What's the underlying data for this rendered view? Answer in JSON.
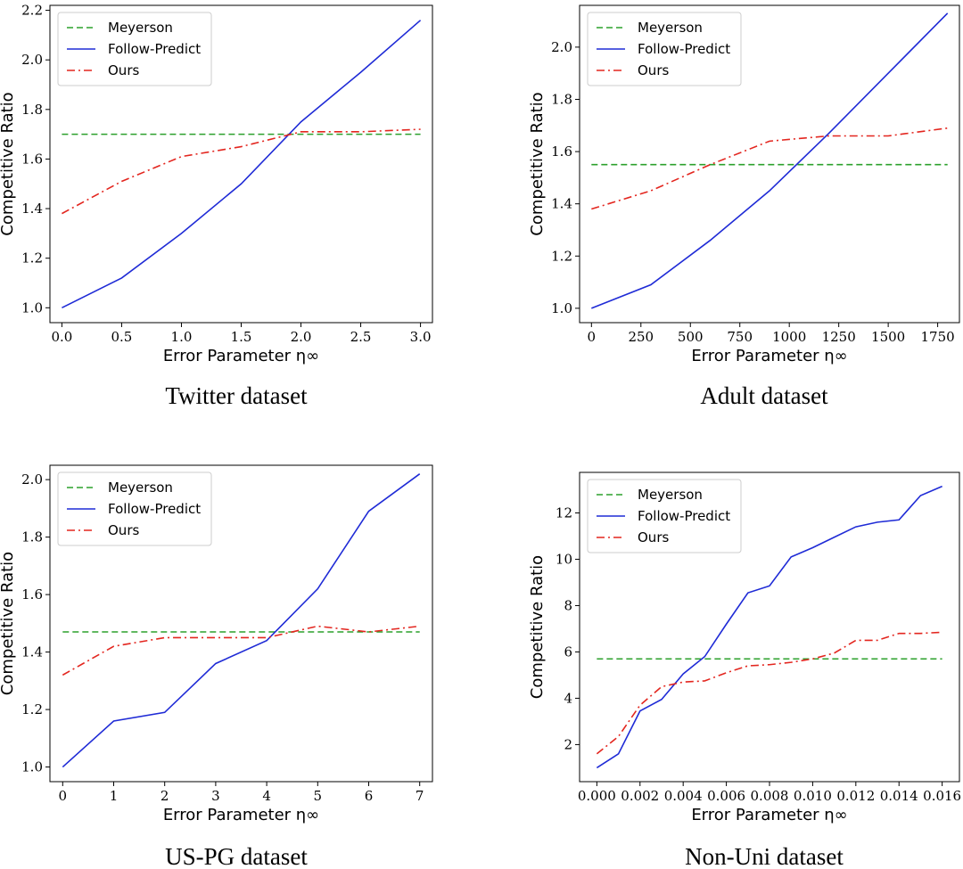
{
  "legend": [
    "Meyerson",
    "Follow-Predict",
    "Ours"
  ],
  "series_colors": {
    "Meyerson": "#2ca02c",
    "Follow-Predict": "#1f2bd6",
    "Ours": "#e3261f"
  },
  "chart_data": [
    {
      "type": "line",
      "title": "Twitter dataset",
      "xlabel": "Error Parameter η∞",
      "ylabel": "Competitive Ratio",
      "xlim": [
        -0.1,
        3.1
      ],
      "ylim": [
        0.94,
        2.22
      ],
      "xticks": [
        0,
        0.5,
        1,
        1.5,
        2,
        2.5,
        3
      ],
      "xtick_labels": [
        "0.0",
        "0.5",
        "1.0",
        "1.5",
        "2.0",
        "2.5",
        "3.0"
      ],
      "yticks": [
        1.0,
        1.2,
        1.4,
        1.6,
        1.8,
        2.0,
        2.2
      ],
      "ytick_labels": [
        "1.0",
        "1.2",
        "1.4",
        "1.6",
        "1.8",
        "2.0",
        "2.2"
      ],
      "legend_position": "top-left",
      "series": [
        {
          "name": "Meyerson",
          "style": "dashed",
          "x": [
            0,
            3
          ],
          "y": [
            1.7,
            1.7
          ]
        },
        {
          "name": "Follow-Predict",
          "style": "solid",
          "x": [
            0,
            0.5,
            1,
            1.5,
            2,
            2.5,
            3
          ],
          "y": [
            1.0,
            1.12,
            1.3,
            1.5,
            1.75,
            1.95,
            2.16
          ]
        },
        {
          "name": "Ours",
          "style": "dashdot",
          "x": [
            0,
            0.5,
            1,
            1.5,
            2,
            2.5,
            3
          ],
          "y": [
            1.38,
            1.51,
            1.61,
            1.65,
            1.71,
            1.71,
            1.72
          ]
        }
      ]
    },
    {
      "type": "line",
      "title": "Adult dataset",
      "xlabel": "Error Parameter η∞",
      "ylabel": "Competitive Ratio",
      "xlim": [
        -60,
        1860
      ],
      "ylim": [
        0.945,
        2.16
      ],
      "xticks": [
        0,
        250,
        500,
        750,
        1000,
        1250,
        1500,
        1750
      ],
      "xtick_labels": [
        "0",
        "250",
        "500",
        "750",
        "1000",
        "1250",
        "1500",
        "1750"
      ],
      "yticks": [
        1.0,
        1.2,
        1.4,
        1.6,
        1.8,
        2.0
      ],
      "ytick_labels": [
        "1.0",
        "1.2",
        "1.4",
        "1.6",
        "1.8",
        "2.0"
      ],
      "legend_position": "top-left",
      "series": [
        {
          "name": "Meyerson",
          "style": "dashed",
          "x": [
            0,
            1800
          ],
          "y": [
            1.55,
            1.55
          ]
        },
        {
          "name": "Follow-Predict",
          "style": "solid",
          "x": [
            0,
            300,
            600,
            900,
            1200,
            1500,
            1800
          ],
          "y": [
            1.0,
            1.09,
            1.26,
            1.45,
            1.67,
            1.9,
            2.13
          ]
        },
        {
          "name": "Ours",
          "style": "dashdot",
          "x": [
            0,
            300,
            600,
            900,
            1200,
            1500,
            1800
          ],
          "y": [
            1.38,
            1.45,
            1.55,
            1.64,
            1.66,
            1.66,
            1.69
          ]
        }
      ]
    },
    {
      "type": "line",
      "title": "US-PG dataset",
      "xlabel": "Error Parameter η∞",
      "ylabel": "Competitive Ratio",
      "xlim": [
        -0.25,
        7.25
      ],
      "ylim": [
        0.949,
        2.05
      ],
      "xticks": [
        0,
        1,
        2,
        3,
        4,
        5,
        6,
        7
      ],
      "xtick_labels": [
        "0",
        "1",
        "2",
        "3",
        "4",
        "5",
        "6",
        "7"
      ],
      "yticks": [
        1.0,
        1.2,
        1.4,
        1.6,
        1.8,
        2.0
      ],
      "ytick_labels": [
        "1.0",
        "1.2",
        "1.4",
        "1.6",
        "1.8",
        "2.0"
      ],
      "legend_position": "top-left",
      "series": [
        {
          "name": "Meyerson",
          "style": "dashed",
          "x": [
            0,
            7
          ],
          "y": [
            1.47,
            1.47
          ]
        },
        {
          "name": "Follow-Predict",
          "style": "solid",
          "x": [
            0,
            1,
            2,
            3,
            4,
            5,
            6,
            7
          ],
          "y": [
            1.0,
            1.16,
            1.19,
            1.36,
            1.44,
            1.62,
            1.89,
            2.02
          ]
        },
        {
          "name": "Ours",
          "style": "dashdot",
          "x": [
            0,
            1,
            2,
            3,
            4,
            5,
            6,
            7
          ],
          "y": [
            1.32,
            1.42,
            1.45,
            1.45,
            1.45,
            1.49,
            1.47,
            1.49
          ]
        }
      ]
    },
    {
      "type": "line",
      "title": "Non-Uni dataset",
      "xlabel": "Error Parameter η∞",
      "ylabel": "Competitive Ratio",
      "xlim": [
        -0.0008,
        0.0168
      ],
      "ylim": [
        0.4,
        13.75
      ],
      "xticks": [
        0,
        0.002,
        0.004,
        0.006,
        0.008,
        0.01,
        0.012,
        0.014,
        0.016
      ],
      "xtick_labels": [
        "0.000",
        "0.002",
        "0.004",
        "0.006",
        "0.008",
        "0.010",
        "0.012",
        "0.014",
        "0.016"
      ],
      "yticks": [
        2,
        4,
        6,
        8,
        10,
        12
      ],
      "ytick_labels": [
        "2",
        "4",
        "6",
        "8",
        "10",
        "12"
      ],
      "legend_position": "top-left",
      "series": [
        {
          "name": "Meyerson",
          "style": "dashed",
          "x": [
            0,
            0.016
          ],
          "y": [
            5.7,
            5.7
          ]
        },
        {
          "name": "Follow-Predict",
          "style": "solid",
          "x": [
            0,
            0.001,
            0.002,
            0.003,
            0.004,
            0.005,
            0.006,
            0.007,
            0.008,
            0.009,
            0.01,
            0.011,
            0.012,
            0.013,
            0.014,
            0.015,
            0.016
          ],
          "y": [
            1.0,
            1.6,
            3.45,
            3.95,
            5.05,
            5.8,
            7.2,
            8.55,
            8.85,
            10.1,
            10.5,
            10.95,
            11.4,
            11.6,
            11.7,
            12.75,
            13.15
          ]
        },
        {
          "name": "Ours",
          "style": "dashdot",
          "x": [
            0,
            0.001,
            0.002,
            0.003,
            0.004,
            0.005,
            0.006,
            0.007,
            0.008,
            0.009,
            0.01,
            0.011,
            0.012,
            0.013,
            0.014,
            0.015,
            0.016
          ],
          "y": [
            1.6,
            2.35,
            3.7,
            4.5,
            4.7,
            4.75,
            5.1,
            5.4,
            5.45,
            5.55,
            5.7,
            5.95,
            6.5,
            6.5,
            6.8,
            6.8,
            6.85
          ]
        }
      ]
    }
  ]
}
